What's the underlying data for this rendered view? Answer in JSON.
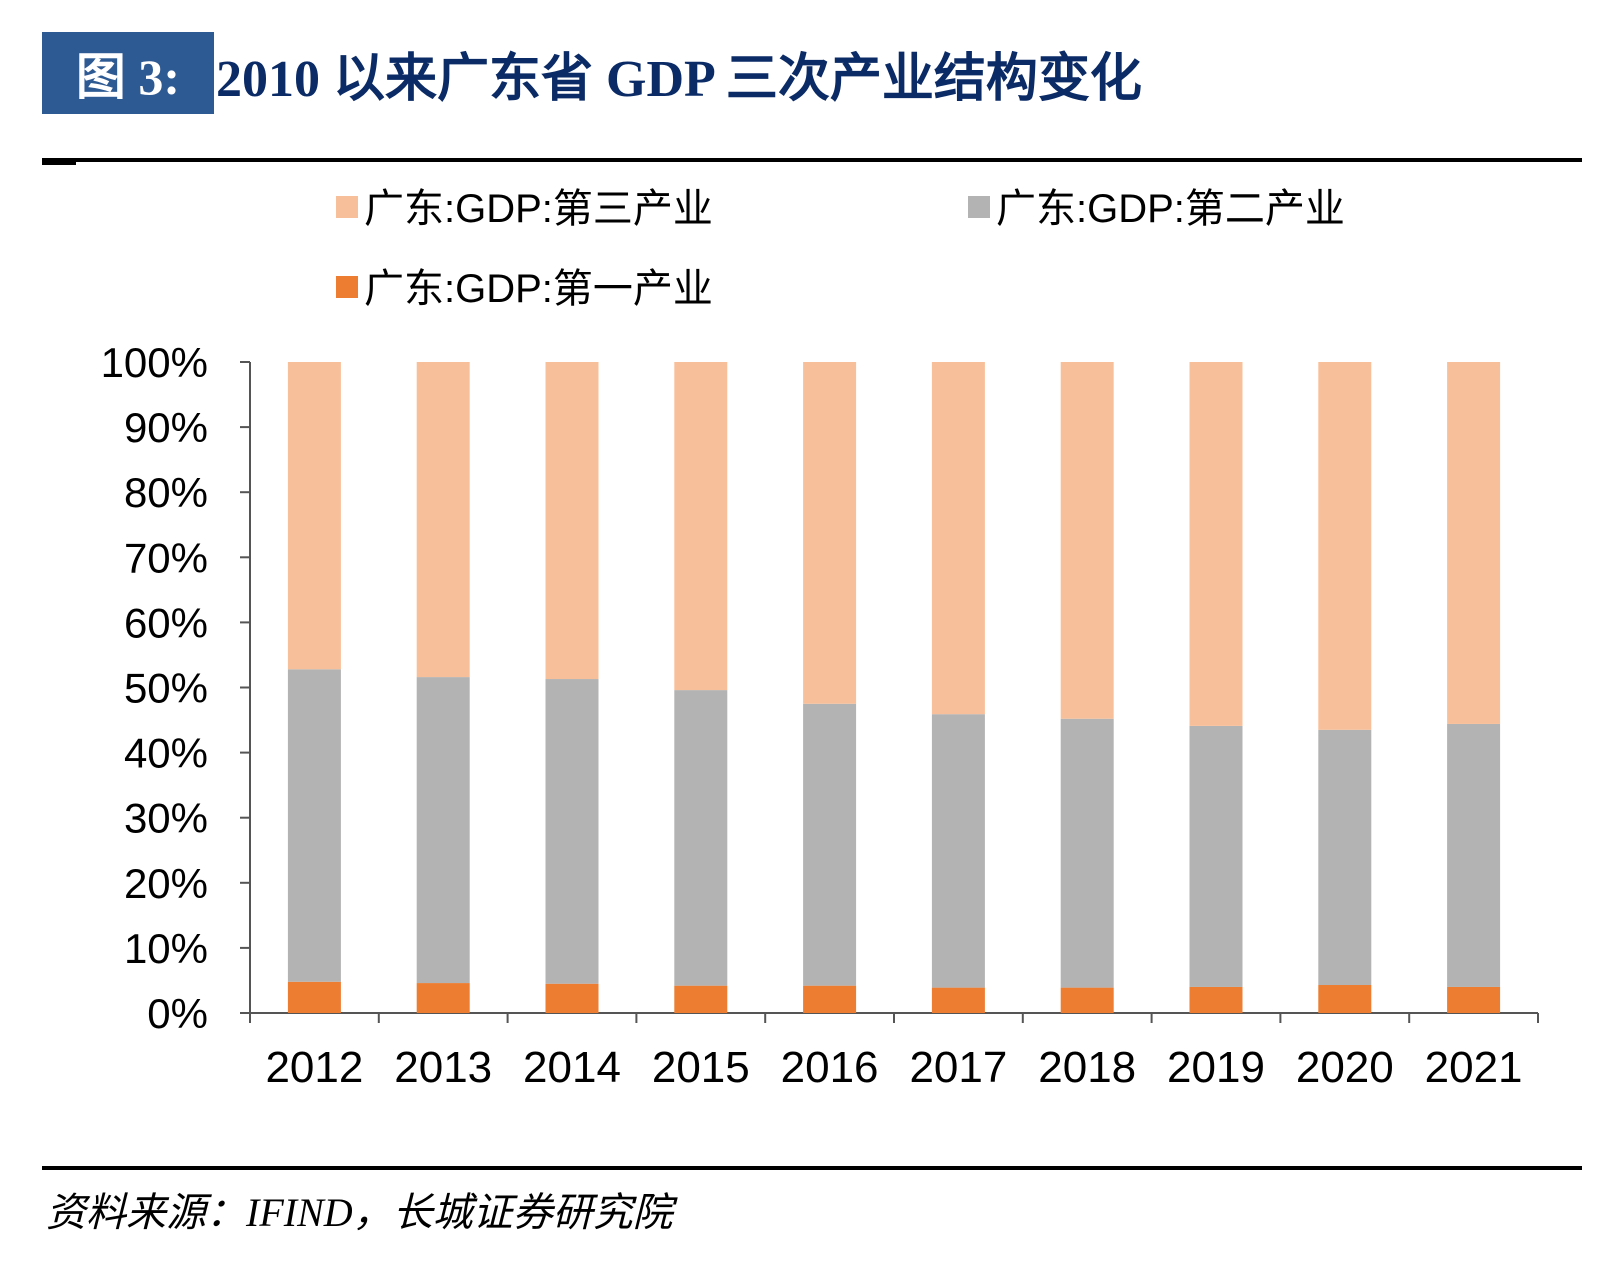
{
  "header": {
    "fig_label": "图 3:",
    "title": "2010 以来广东省 GDP 三次产业结构变化"
  },
  "footer": {
    "source": "资料来源：IFIND，长城证券研究院"
  },
  "chart_data": {
    "type": "bar",
    "stacked": true,
    "title": "",
    "xlabel": "",
    "ylabel": "",
    "ylim": [
      0,
      100
    ],
    "y_unit": "%",
    "y_ticks": [
      "0%",
      "10%",
      "20%",
      "30%",
      "40%",
      "50%",
      "60%",
      "70%",
      "80%",
      "90%",
      "100%"
    ],
    "grid": false,
    "legend_position": "top",
    "categories": [
      "2012",
      "2013",
      "2014",
      "2015",
      "2016",
      "2017",
      "2018",
      "2019",
      "2020",
      "2021"
    ],
    "series": [
      {
        "name": "广东:GDP:第一产业",
        "color": "#ed7d31",
        "values": [
          4.8,
          4.6,
          4.5,
          4.2,
          4.2,
          3.9,
          3.9,
          4.0,
          4.3,
          4.0
        ]
      },
      {
        "name": "广东:GDP:第二产业",
        "color": "#b3b3b3",
        "values": [
          48.0,
          47.0,
          46.8,
          45.4,
          43.3,
          42.0,
          41.3,
          40.1,
          39.2,
          40.4
        ]
      },
      {
        "name": "广东:GDP:第三产业",
        "color": "#f8c09a",
        "values": [
          47.2,
          48.4,
          48.7,
          50.4,
          52.5,
          54.1,
          54.8,
          55.9,
          56.5,
          55.6
        ]
      }
    ],
    "legend_order": [
      2,
      1,
      0
    ]
  }
}
